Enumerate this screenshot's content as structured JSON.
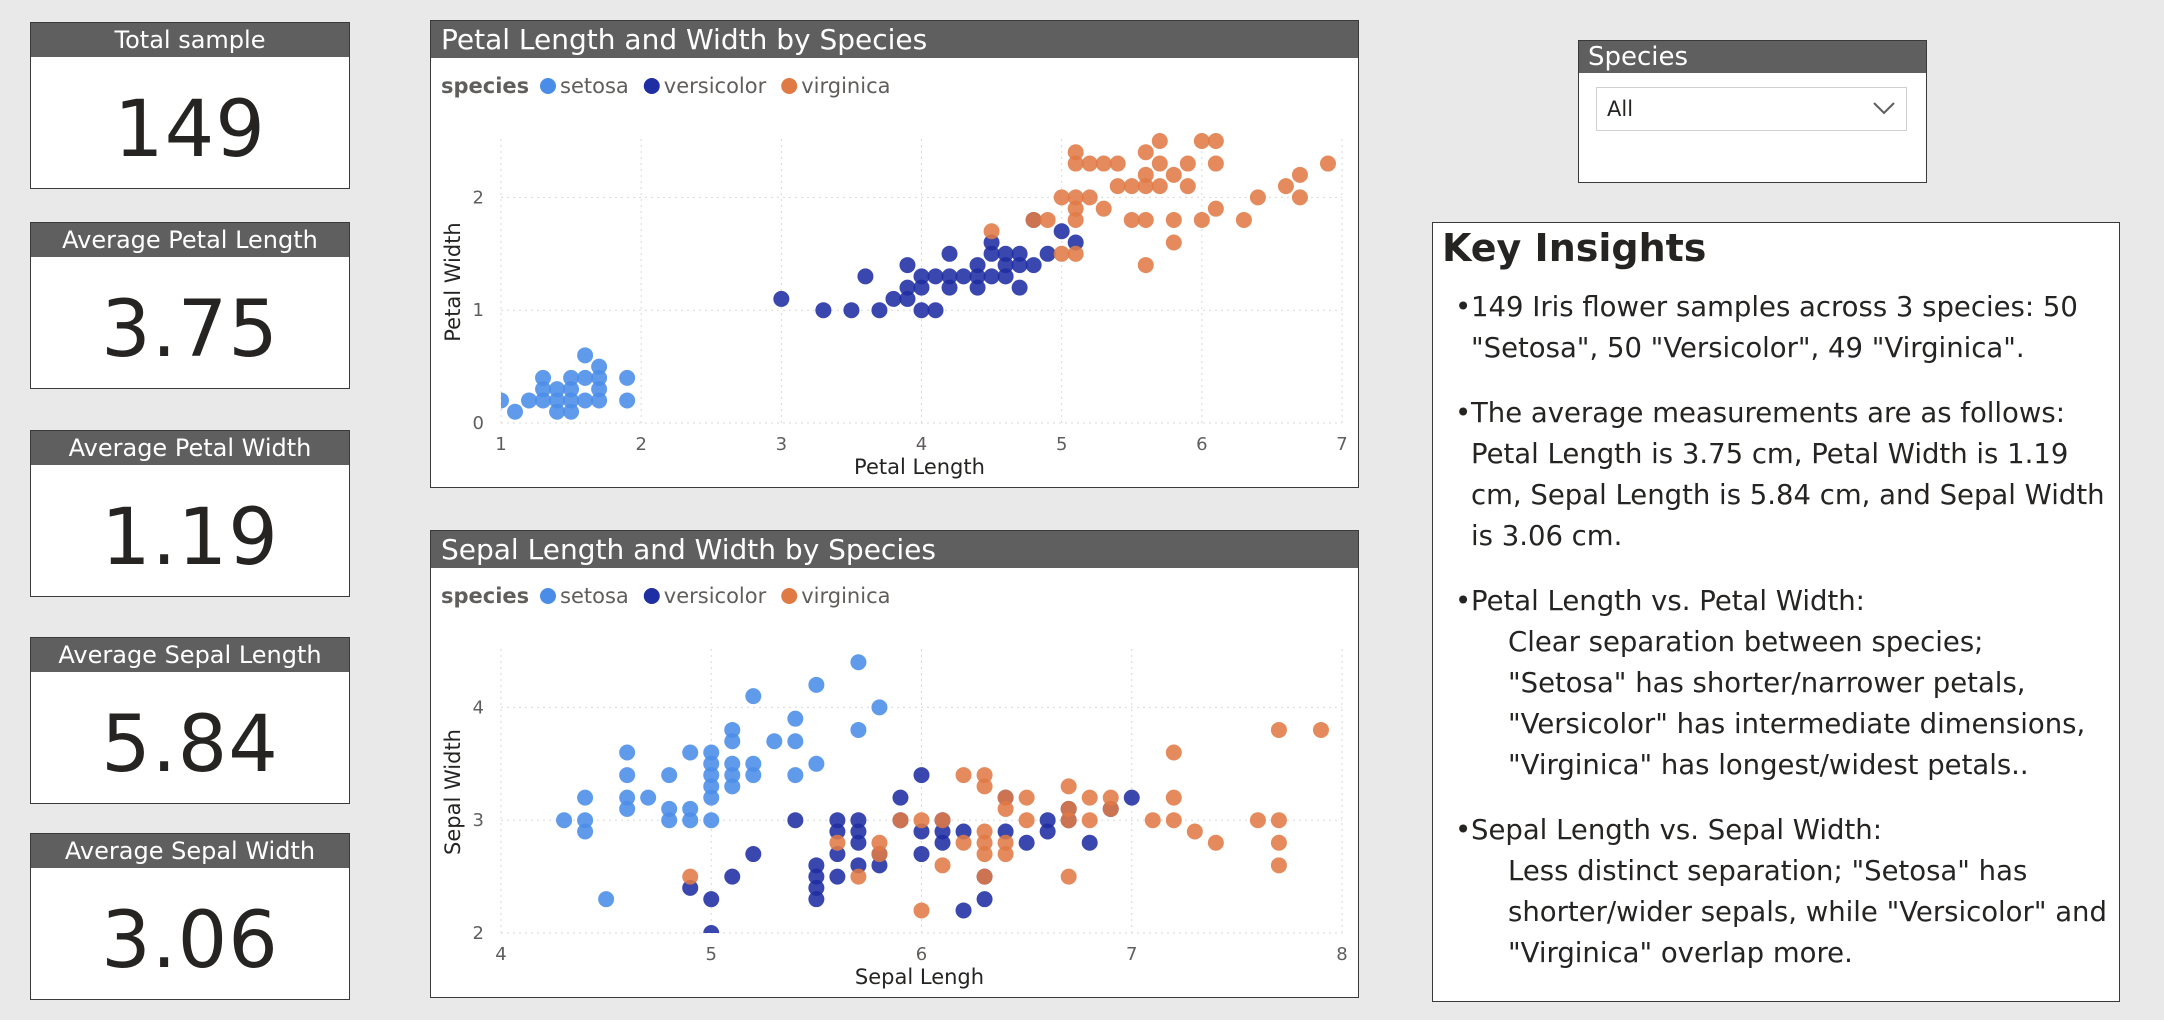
{
  "kpis": [
    {
      "label": "Total sample",
      "value": "149"
    },
    {
      "label": "Average Petal Length",
      "value": "3.75"
    },
    {
      "label": "Average Petal Width",
      "value": "1.19"
    },
    {
      "label": "Average Sepal Length",
      "value": "5.84"
    },
    {
      "label": "Average Sepal Width",
      "value": "3.06"
    }
  ],
  "slicer": {
    "title": "Species",
    "selected": "All"
  },
  "insights": {
    "title": "Key Insights",
    "items": [
      {
        "text": "149 Iris flower samples across 3 species: 50 \"Setosa\", 50 \"Versicolor\", 49 \"Virginica\".",
        "sub": ""
      },
      {
        "text": "The average measurements are as follows: Petal Length is 3.75 cm, Petal Width is 1.19 cm, Sepal Length is 5.84 cm, and Sepal Width is 3.06 cm.",
        "sub": ""
      },
      {
        "text": "Petal Length vs. Petal Width:",
        "sub": "Clear separation between species; \"Setosa\" has shorter/narrower petals, \"Versicolor\" has intermediate dimensions, \"Virginica\" has longest/widest petals.."
      },
      {
        "text": "Sepal Length vs. Sepal Width:",
        "sub": "Less distinct separation; \"Setosa\" has shorter/wider sepals, while \"Versicolor\" and \"Virginica\" overlap more."
      }
    ]
  },
  "colors": {
    "setosa": "#4a8de8",
    "versicolor": "#1f2ea3",
    "virginica": "#e07a45"
  },
  "chart_data": [
    {
      "type": "scatter",
      "title": "Petal Length and Width by Species",
      "legend_title": "species",
      "xlabel": "Petal Length",
      "ylabel": "Petal Width",
      "xlim": [
        1,
        7
      ],
      "ylim": [
        0,
        2.5
      ],
      "xticks": [
        1,
        2,
        3,
        4,
        5,
        6,
        7
      ],
      "yticks": [
        0,
        1,
        2
      ],
      "grid": true,
      "legend": "top-left",
      "series": [
        {
          "name": "setosa",
          "points": [
            [
              1.0,
              0.2
            ],
            [
              1.1,
              0.1
            ],
            [
              1.2,
              0.2
            ],
            [
              1.3,
              0.2
            ],
            [
              1.3,
              0.3
            ],
            [
              1.3,
              0.4
            ],
            [
              1.4,
              0.1
            ],
            [
              1.4,
              0.2
            ],
            [
              1.4,
              0.3
            ],
            [
              1.5,
              0.1
            ],
            [
              1.5,
              0.2
            ],
            [
              1.5,
              0.3
            ],
            [
              1.5,
              0.4
            ],
            [
              1.6,
              0.2
            ],
            [
              1.6,
              0.4
            ],
            [
              1.6,
              0.6
            ],
            [
              1.7,
              0.2
            ],
            [
              1.7,
              0.3
            ],
            [
              1.7,
              0.4
            ],
            [
              1.7,
              0.5
            ],
            [
              1.9,
              0.2
            ],
            [
              1.9,
              0.4
            ]
          ]
        },
        {
          "name": "versicolor",
          "points": [
            [
              3.0,
              1.1
            ],
            [
              3.3,
              1.0
            ],
            [
              3.5,
              1.0
            ],
            [
              3.6,
              1.3
            ],
            [
              3.7,
              1.0
            ],
            [
              3.8,
              1.1
            ],
            [
              3.9,
              1.1
            ],
            [
              3.9,
              1.2
            ],
            [
              3.9,
              1.4
            ],
            [
              4.0,
              1.0
            ],
            [
              4.0,
              1.2
            ],
            [
              4.0,
              1.3
            ],
            [
              4.1,
              1.0
            ],
            [
              4.1,
              1.3
            ],
            [
              4.2,
              1.2
            ],
            [
              4.2,
              1.3
            ],
            [
              4.2,
              1.5
            ],
            [
              4.3,
              1.3
            ],
            [
              4.4,
              1.2
            ],
            [
              4.4,
              1.3
            ],
            [
              4.4,
              1.4
            ],
            [
              4.5,
              1.3
            ],
            [
              4.5,
              1.5
            ],
            [
              4.5,
              1.6
            ],
            [
              4.6,
              1.3
            ],
            [
              4.6,
              1.4
            ],
            [
              4.6,
              1.5
            ],
            [
              4.7,
              1.2
            ],
            [
              4.7,
              1.4
            ],
            [
              4.7,
              1.5
            ],
            [
              4.8,
              1.4
            ],
            [
              4.8,
              1.8
            ],
            [
              4.9,
              1.5
            ],
            [
              5.0,
              1.7
            ],
            [
              5.1,
              1.6
            ]
          ]
        },
        {
          "name": "virginica",
          "points": [
            [
              4.5,
              1.7
            ],
            [
              4.8,
              1.8
            ],
            [
              4.9,
              1.8
            ],
            [
              5.0,
              1.5
            ],
            [
              5.0,
              2.0
            ],
            [
              5.1,
              1.5
            ],
            [
              5.1,
              1.8
            ],
            [
              5.1,
              1.9
            ],
            [
              5.1,
              2.0
            ],
            [
              5.1,
              2.3
            ],
            [
              5.1,
              2.4
            ],
            [
              5.2,
              2.0
            ],
            [
              5.2,
              2.3
            ],
            [
              5.3,
              1.9
            ],
            [
              5.3,
              2.3
            ],
            [
              5.4,
              2.1
            ],
            [
              5.4,
              2.3
            ],
            [
              5.5,
              1.8
            ],
            [
              5.5,
              2.1
            ],
            [
              5.6,
              1.4
            ],
            [
              5.6,
              1.8
            ],
            [
              5.6,
              2.1
            ],
            [
              5.6,
              2.2
            ],
            [
              5.6,
              2.4
            ],
            [
              5.7,
              2.1
            ],
            [
              5.7,
              2.3
            ],
            [
              5.7,
              2.5
            ],
            [
              5.8,
              1.6
            ],
            [
              5.8,
              1.8
            ],
            [
              5.8,
              2.2
            ],
            [
              5.9,
              2.1
            ],
            [
              5.9,
              2.3
            ],
            [
              6.0,
              1.8
            ],
            [
              6.0,
              2.5
            ],
            [
              6.1,
              1.9
            ],
            [
              6.1,
              2.3
            ],
            [
              6.1,
              2.5
            ],
            [
              6.3,
              1.8
            ],
            [
              6.4,
              2.0
            ],
            [
              6.6,
              2.1
            ],
            [
              6.7,
              2.0
            ],
            [
              6.7,
              2.2
            ],
            [
              6.9,
              2.3
            ]
          ]
        }
      ]
    },
    {
      "type": "scatter",
      "title": "Sepal Length and Width by Species",
      "legend_title": "species",
      "xlabel": "Sepal Lengh",
      "ylabel": "Sepal Width",
      "xlim": [
        4,
        8
      ],
      "ylim": [
        2,
        4.5
      ],
      "xticks": [
        4,
        5,
        6,
        7,
        8
      ],
      "yticks": [
        2,
        3,
        4
      ],
      "grid": true,
      "legend": "top-left",
      "series": [
        {
          "name": "setosa",
          "points": [
            [
              4.3,
              3.0
            ],
            [
              4.4,
              2.9
            ],
            [
              4.4,
              3.0
            ],
            [
              4.4,
              3.2
            ],
            [
              4.5,
              2.3
            ],
            [
              4.6,
              3.1
            ],
            [
              4.6,
              3.2
            ],
            [
              4.6,
              3.4
            ],
            [
              4.6,
              3.6
            ],
            [
              4.7,
              3.2
            ],
            [
              4.8,
              3.0
            ],
            [
              4.8,
              3.1
            ],
            [
              4.8,
              3.4
            ],
            [
              4.9,
              3.0
            ],
            [
              4.9,
              3.1
            ],
            [
              4.9,
              3.6
            ],
            [
              5.0,
              3.0
            ],
            [
              5.0,
              3.2
            ],
            [
              5.0,
              3.3
            ],
            [
              5.0,
              3.4
            ],
            [
              5.0,
              3.5
            ],
            [
              5.0,
              3.6
            ],
            [
              5.1,
              3.3
            ],
            [
              5.1,
              3.4
            ],
            [
              5.1,
              3.5
            ],
            [
              5.1,
              3.7
            ],
            [
              5.1,
              3.8
            ],
            [
              5.2,
              3.4
            ],
            [
              5.2,
              3.5
            ],
            [
              5.2,
              4.1
            ],
            [
              5.3,
              3.7
            ],
            [
              5.4,
              3.4
            ],
            [
              5.4,
              3.7
            ],
            [
              5.4,
              3.9
            ],
            [
              5.5,
              3.5
            ],
            [
              5.5,
              4.2
            ],
            [
              5.7,
              3.8
            ],
            [
              5.7,
              4.4
            ],
            [
              5.8,
              4.0
            ]
          ]
        },
        {
          "name": "versicolor",
          "points": [
            [
              4.9,
              2.4
            ],
            [
              5.0,
              2.0
            ],
            [
              5.0,
              2.3
            ],
            [
              5.1,
              2.5
            ],
            [
              5.2,
              2.7
            ],
            [
              5.4,
              3.0
            ],
            [
              5.5,
              2.3
            ],
            [
              5.5,
              2.4
            ],
            [
              5.5,
              2.5
            ],
            [
              5.5,
              2.6
            ],
            [
              5.6,
              2.5
            ],
            [
              5.6,
              2.7
            ],
            [
              5.6,
              2.9
            ],
            [
              5.6,
              3.0
            ],
            [
              5.7,
              2.6
            ],
            [
              5.7,
              2.8
            ],
            [
              5.7,
              2.9
            ],
            [
              5.7,
              3.0
            ],
            [
              5.8,
              2.6
            ],
            [
              5.8,
              2.7
            ],
            [
              5.9,
              3.0
            ],
            [
              5.9,
              3.2
            ],
            [
              6.0,
              2.7
            ],
            [
              6.0,
              2.9
            ],
            [
              6.0,
              3.4
            ],
            [
              6.1,
              2.8
            ],
            [
              6.1,
              2.9
            ],
            [
              6.1,
              3.0
            ],
            [
              6.2,
              2.2
            ],
            [
              6.2,
              2.9
            ],
            [
              6.3,
              2.3
            ],
            [
              6.3,
              2.5
            ],
            [
              6.4,
              2.9
            ],
            [
              6.4,
              3.2
            ],
            [
              6.5,
              2.8
            ],
            [
              6.6,
              2.9
            ],
            [
              6.6,
              3.0
            ],
            [
              6.7,
              3.0
            ],
            [
              6.7,
              3.1
            ],
            [
              6.8,
              2.8
            ],
            [
              6.9,
              3.1
            ],
            [
              7.0,
              3.2
            ]
          ]
        },
        {
          "name": "virginica",
          "points": [
            [
              4.9,
              2.5
            ],
            [
              5.6,
              2.8
            ],
            [
              5.7,
              2.5
            ],
            [
              5.8,
              2.7
            ],
            [
              5.8,
              2.8
            ],
            [
              5.9,
              3.0
            ],
            [
              6.0,
              2.2
            ],
            [
              6.0,
              3.0
            ],
            [
              6.1,
              2.6
            ],
            [
              6.1,
              3.0
            ],
            [
              6.2,
              2.8
            ],
            [
              6.2,
              3.4
            ],
            [
              6.3,
              2.5
            ],
            [
              6.3,
              2.7
            ],
            [
              6.3,
              2.8
            ],
            [
              6.3,
              2.9
            ],
            [
              6.3,
              3.3
            ],
            [
              6.3,
              3.4
            ],
            [
              6.4,
              2.7
            ],
            [
              6.4,
              2.8
            ],
            [
              6.4,
              3.1
            ],
            [
              6.4,
              3.2
            ],
            [
              6.5,
              3.0
            ],
            [
              6.5,
              3.2
            ],
            [
              6.7,
              2.5
            ],
            [
              6.7,
              3.0
            ],
            [
              6.7,
              3.1
            ],
            [
              6.7,
              3.3
            ],
            [
              6.8,
              3.0
            ],
            [
              6.8,
              3.2
            ],
            [
              6.9,
              3.1
            ],
            [
              6.9,
              3.2
            ],
            [
              7.1,
              3.0
            ],
            [
              7.2,
              3.0
            ],
            [
              7.2,
              3.2
            ],
            [
              7.2,
              3.6
            ],
            [
              7.3,
              2.9
            ],
            [
              7.4,
              2.8
            ],
            [
              7.6,
              3.0
            ],
            [
              7.7,
              2.6
            ],
            [
              7.7,
              2.8
            ],
            [
              7.7,
              3.0
            ],
            [
              7.7,
              3.8
            ],
            [
              7.9,
              3.8
            ]
          ]
        }
      ]
    }
  ]
}
